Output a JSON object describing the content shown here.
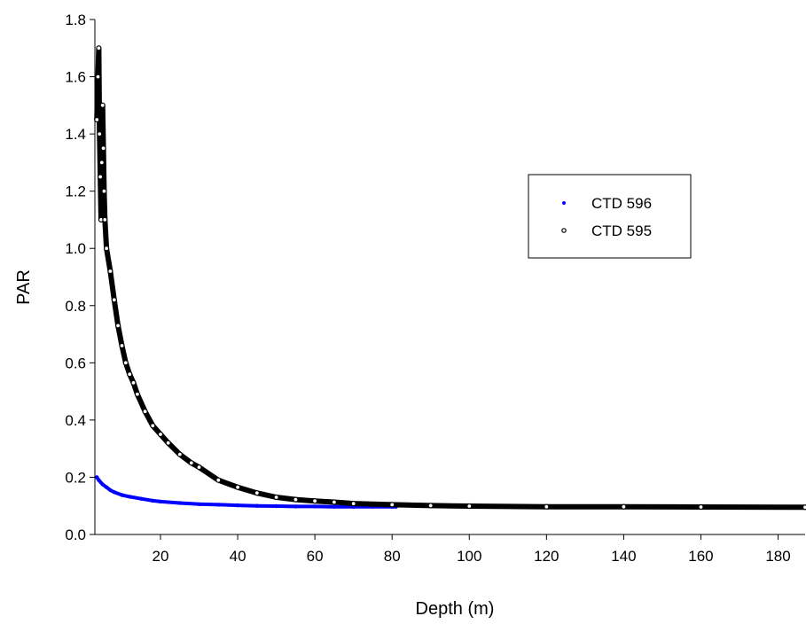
{
  "chart_data": {
    "type": "scatter",
    "xlabel": "Depth (m)",
    "ylabel": "PAR",
    "xlim": [
      3,
      187
    ],
    "ylim": [
      0,
      1.8
    ],
    "x_ticks": [
      20,
      40,
      60,
      80,
      100,
      120,
      140,
      160,
      180
    ],
    "x_tick_labels": [
      "20",
      "40",
      "60",
      "80",
      "100",
      "120",
      "140",
      "160",
      "180"
    ],
    "y_ticks": [
      0,
      0.2,
      0.4,
      0.6,
      0.8,
      1.0,
      1.2,
      1.4,
      1.6,
      1.8
    ],
    "y_tick_labels": [
      "0.0",
      "0.2",
      "0.4",
      "0.6",
      "0.8",
      "1.0",
      "1.2",
      "1.4",
      "1.6",
      "1.8"
    ],
    "grid": false,
    "legend_position": "upper-right",
    "series": [
      {
        "name": "CTD 596",
        "color": "#0000ff",
        "marker": "dot",
        "x": [
          3.5,
          4,
          5,
          6,
          7,
          8,
          10,
          12,
          15,
          18,
          20,
          25,
          30,
          35,
          40,
          45,
          50,
          55,
          60,
          65,
          70,
          75,
          80,
          81
        ],
        "y": [
          0.2,
          0.19,
          0.175,
          0.165,
          0.155,
          0.148,
          0.138,
          0.132,
          0.125,
          0.118,
          0.115,
          0.11,
          0.106,
          0.104,
          0.102,
          0.1,
          0.099,
          0.098,
          0.098,
          0.097,
          0.097,
          0.097,
          0.097,
          0.097
        ]
      },
      {
        "name": "CTD 595",
        "color": "#000000",
        "marker": "open-circle",
        "x": [
          3.5,
          3.8,
          4.0,
          4.2,
          4.4,
          4.6,
          4.8,
          5.0,
          5.2,
          5.4,
          5.6,
          6,
          7,
          8,
          9,
          10,
          11,
          12,
          13,
          14,
          16,
          18,
          20,
          22,
          25,
          28,
          30,
          35,
          40,
          45,
          50,
          55,
          60,
          65,
          70,
          80,
          90,
          100,
          120,
          140,
          160,
          187
        ],
        "y": [
          1.45,
          1.6,
          1.7,
          1.4,
          1.25,
          1.1,
          1.3,
          1.5,
          1.35,
          1.2,
          1.1,
          1.0,
          0.92,
          0.82,
          0.73,
          0.66,
          0.6,
          0.56,
          0.53,
          0.49,
          0.43,
          0.38,
          0.35,
          0.32,
          0.28,
          0.25,
          0.235,
          0.19,
          0.165,
          0.145,
          0.13,
          0.122,
          0.117,
          0.113,
          0.108,
          0.104,
          0.101,
          0.099,
          0.097,
          0.097,
          0.096,
          0.095
        ]
      }
    ]
  }
}
